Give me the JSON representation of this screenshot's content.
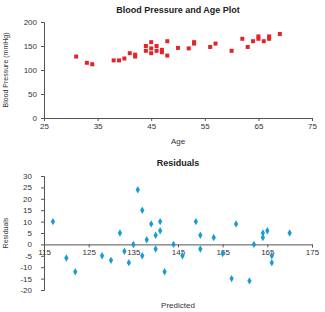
{
  "chart_data": [
    {
      "type": "scatter",
      "title": "Blood Pressure and Age Plot",
      "x_label": "Age",
      "y_label": "Blood Pressure (mmHg)",
      "x": [
        31,
        33,
        34,
        38,
        39,
        40,
        41,
        42,
        42,
        44,
        44,
        45,
        45,
        45,
        46,
        46,
        47,
        47,
        48,
        48,
        50,
        52,
        53,
        53,
        56,
        57,
        60,
        62,
        63,
        64,
        65,
        65,
        66,
        67,
        67,
        69
      ],
      "values": [
        128,
        115,
        112,
        120,
        120,
        124,
        135,
        128,
        132,
        140,
        150,
        145,
        135,
        158,
        140,
        150,
        137,
        142,
        160,
        130,
        146,
        145,
        155,
        158,
        148,
        155,
        140,
        165,
        148,
        160,
        165,
        170,
        160,
        170,
        165,
        175
      ],
      "color": "#e3242b",
      "marker": "square",
      "xlim": [
        25,
        75
      ],
      "xticks": [
        25,
        35,
        45,
        55,
        65,
        75
      ],
      "ylim": [
        0,
        200
      ],
      "yticks": [
        0,
        50,
        100,
        150,
        200
      ],
      "grid": false
    },
    {
      "type": "scatter",
      "title": "Residuals",
      "x_label": "Predicted",
      "y_label": "Residuals",
      "x": [
        117,
        120,
        122,
        128,
        130,
        132,
        133,
        134,
        135,
        136,
        137,
        137,
        138,
        139,
        140,
        140,
        141,
        141,
        142,
        144,
        146,
        149,
        150,
        150,
        153,
        155,
        157,
        158,
        161,
        162,
        164,
        164,
        165,
        166,
        166,
        170
      ],
      "values": [
        10,
        -6,
        -12,
        -5,
        -7,
        5,
        -3,
        -8,
        0,
        24,
        -5,
        15,
        2,
        9,
        -2,
        4,
        10,
        6,
        -12,
        0,
        -5,
        10,
        4,
        -2,
        3,
        -4,
        -15,
        9,
        -16,
        0,
        5,
        3,
        6,
        -5,
        -8,
        5
      ],
      "color": "#1a9bd7",
      "marker": "diamond",
      "xlim": [
        115,
        175
      ],
      "xticks": [
        115,
        125,
        135,
        145,
        155,
        165,
        175
      ],
      "ylim": [
        -20,
        30
      ],
      "yticks": [
        -20,
        -15,
        -10,
        -5,
        0,
        5,
        10,
        15,
        20,
        25,
        30
      ],
      "grid": false
    }
  ]
}
